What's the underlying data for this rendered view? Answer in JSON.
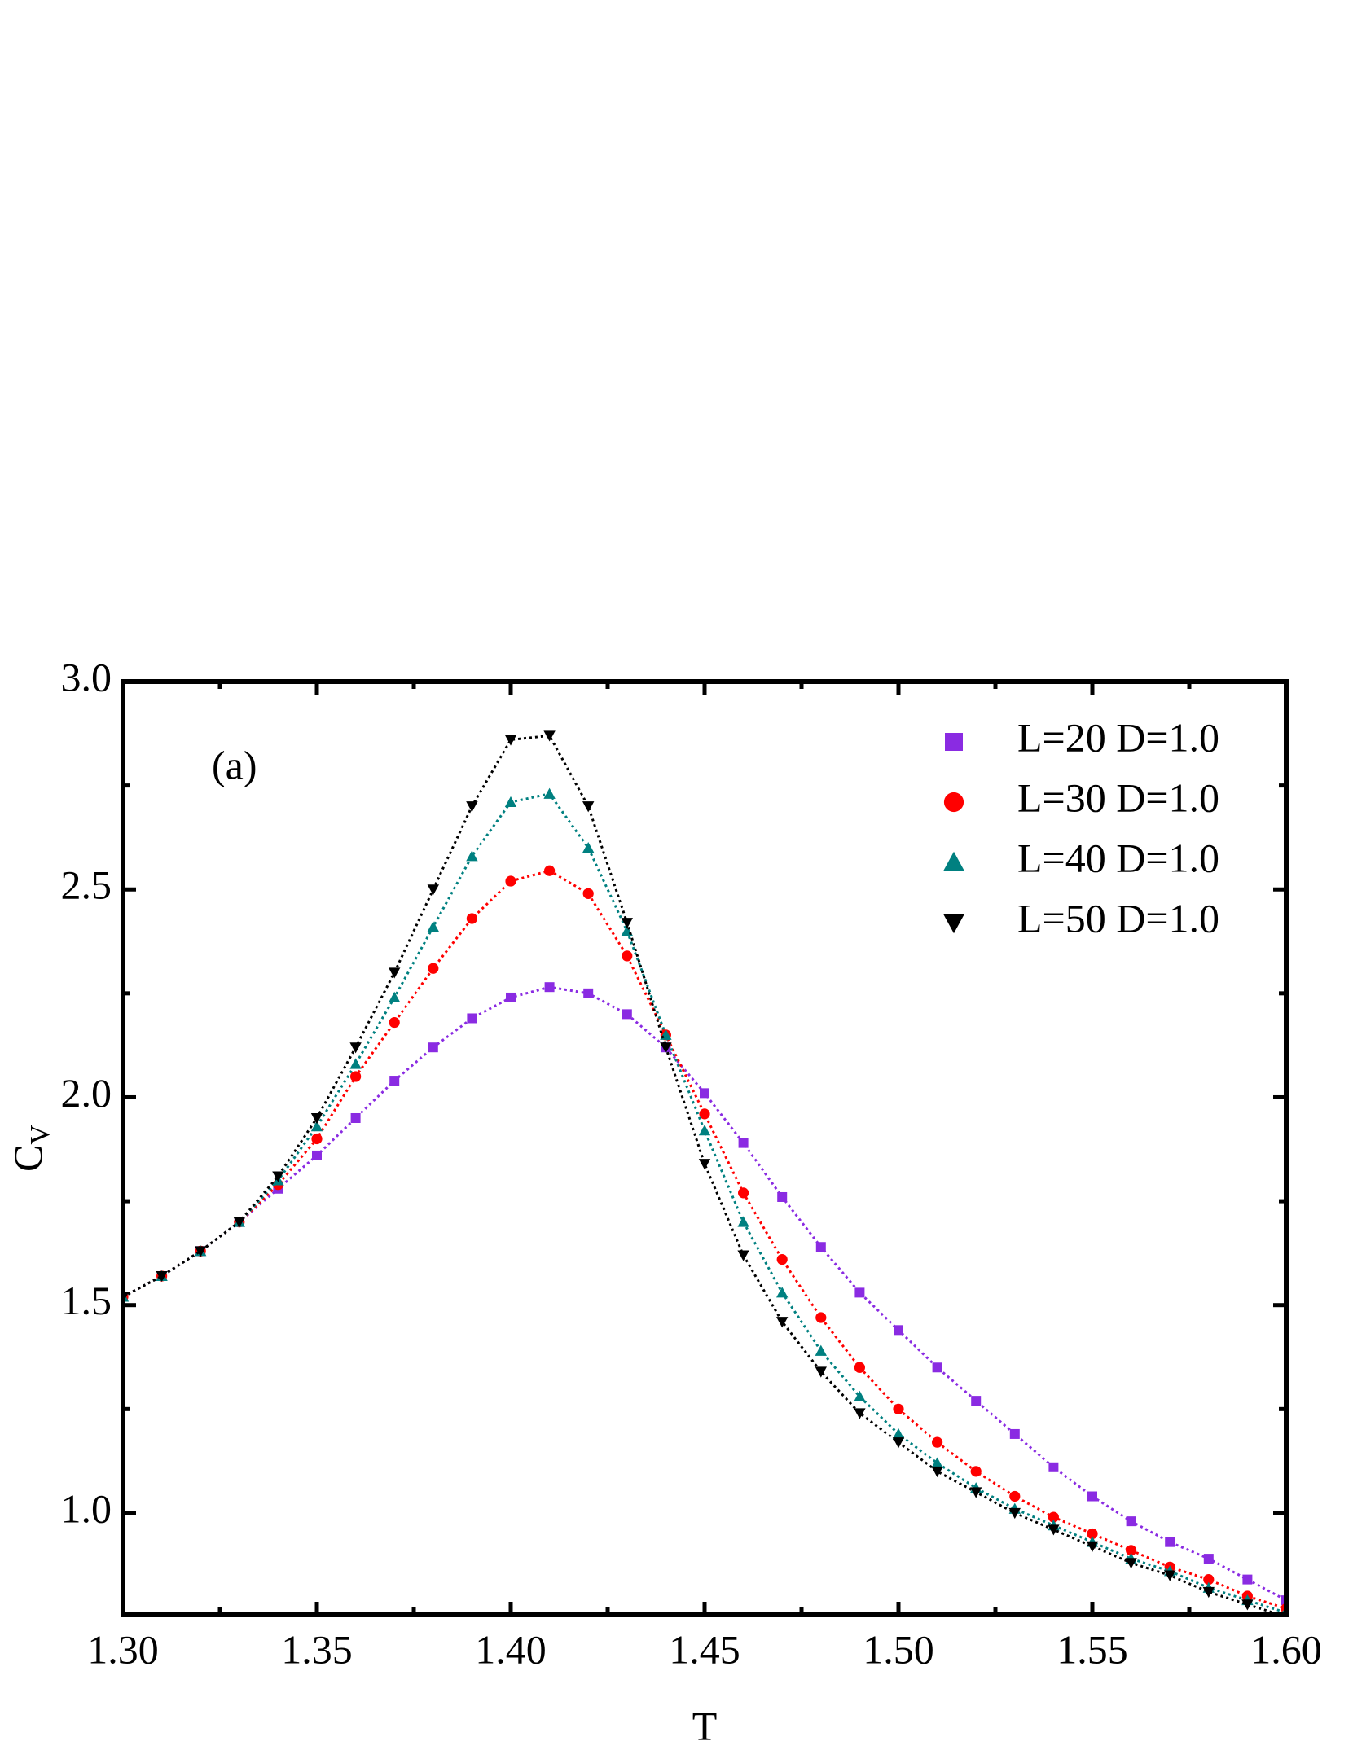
{
  "chart_data": {
    "type": "line",
    "panel_label": "(a)",
    "xlabel": "T",
    "ylabel": {
      "main": "C",
      "sub": "V"
    },
    "x": [
      1.3,
      1.31,
      1.32,
      1.33,
      1.34,
      1.35,
      1.36,
      1.37,
      1.38,
      1.39,
      1.4,
      1.41,
      1.42,
      1.43,
      1.44,
      1.45,
      1.46,
      1.47,
      1.48,
      1.49,
      1.5,
      1.51,
      1.52,
      1.53,
      1.54,
      1.55,
      1.56,
      1.57,
      1.58,
      1.59,
      1.6
    ],
    "series": [
      {
        "name": "L=20 D=1.0",
        "color": "#8a2be2",
        "marker": "square",
        "values": [
          1.52,
          1.57,
          1.63,
          1.7,
          1.78,
          1.86,
          1.95,
          2.04,
          2.12,
          2.19,
          2.24,
          2.265,
          2.25,
          2.2,
          2.12,
          2.01,
          1.89,
          1.76,
          1.64,
          1.53,
          1.44,
          1.35,
          1.27,
          1.19,
          1.11,
          1.04,
          0.98,
          0.93,
          0.89,
          0.84,
          0.79
        ]
      },
      {
        "name": "L=30 D=1.0",
        "color": "#ff0000",
        "marker": "circle",
        "values": [
          1.52,
          1.57,
          1.63,
          1.7,
          1.79,
          1.9,
          2.05,
          2.18,
          2.31,
          2.43,
          2.52,
          2.545,
          2.49,
          2.34,
          2.15,
          1.96,
          1.77,
          1.61,
          1.47,
          1.35,
          1.25,
          1.17,
          1.1,
          1.04,
          0.99,
          0.95,
          0.91,
          0.87,
          0.84,
          0.8,
          0.77
        ]
      },
      {
        "name": "L=40 D=1.0",
        "color": "#008080",
        "marker": "triangle-up",
        "values": [
          1.52,
          1.57,
          1.63,
          1.7,
          1.8,
          1.93,
          2.08,
          2.24,
          2.41,
          2.58,
          2.71,
          2.73,
          2.6,
          2.4,
          2.15,
          1.92,
          1.7,
          1.53,
          1.39,
          1.28,
          1.19,
          1.12,
          1.06,
          1.01,
          0.97,
          0.93,
          0.89,
          0.86,
          0.82,
          0.79,
          0.76
        ]
      },
      {
        "name": "L=50 D=1.0",
        "color": "#000000",
        "marker": "triangle-down",
        "values": [
          1.52,
          1.57,
          1.63,
          1.7,
          1.81,
          1.95,
          2.12,
          2.3,
          2.5,
          2.7,
          2.86,
          2.87,
          2.7,
          2.42,
          2.12,
          1.84,
          1.62,
          1.46,
          1.34,
          1.24,
          1.17,
          1.1,
          1.05,
          1.0,
          0.96,
          0.92,
          0.88,
          0.85,
          0.81,
          0.78,
          0.75
        ]
      }
    ],
    "xlim": [
      1.3,
      1.6
    ],
    "ylim": [
      0.755,
      3.0
    ],
    "xticks": [
      {
        "value": 1.3,
        "label": "1.30"
      },
      {
        "value": 1.35,
        "label": "1.35"
      },
      {
        "value": 1.4,
        "label": "1.40"
      },
      {
        "value": 1.45,
        "label": "1.45"
      },
      {
        "value": 1.5,
        "label": "1.50"
      },
      {
        "value": 1.55,
        "label": "1.55"
      },
      {
        "value": 1.6,
        "label": "1.60"
      }
    ],
    "yticks": [
      {
        "value": 1,
        "label": "1.0"
      },
      {
        "value": 1.5,
        "label": "1.5"
      },
      {
        "value": 2,
        "label": "2.0"
      },
      {
        "value": 2.5,
        "label": "2.5"
      },
      {
        "value": 3,
        "label": "3.0"
      }
    ],
    "xminorticks": [
      1.325,
      1.375,
      1.425,
      1.475,
      1.525,
      1.575
    ],
    "yminorticks": [
      1.25,
      1.75,
      2.25,
      2.75
    ],
    "grid": false,
    "legend": "upper right"
  }
}
